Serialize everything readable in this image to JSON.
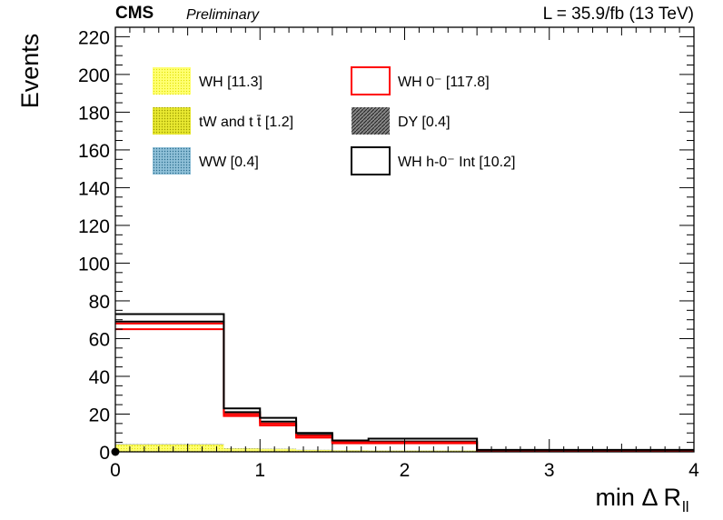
{
  "header": {
    "experiment": "CMS",
    "status": "Preliminary",
    "luminosity": "L = 35.9/fb (13 TeV)"
  },
  "chart_data": {
    "type": "histogram",
    "xlabel": "min Δ R",
    "xlabel_sub": "ll",
    "ylabel": "Events",
    "xlim": [
      0,
      4
    ],
    "ylim": [
      0,
      225
    ],
    "x_ticks": [
      "0",
      "1",
      "2",
      "3",
      "4"
    ],
    "y_ticks": [
      "0",
      "20",
      "40",
      "60",
      "80",
      "100",
      "120",
      "140",
      "160",
      "180",
      "200",
      "220"
    ],
    "bin_edges": [
      0,
      0.75,
      1.0,
      1.25,
      1.5,
      1.75,
      2.5,
      4.0
    ],
    "stacked_background": [
      {
        "name": "WH [11.3]",
        "color": "#ffff66",
        "values": [
          3.5,
          1.6,
          1.4,
          0.9,
          0.7,
          0.6,
          0.3
        ]
      },
      {
        "name": "tW and t t̄ [1.2]",
        "color": "#d4d400",
        "values": [
          0.4,
          0.2,
          0.15,
          0.1,
          0.1,
          0.1,
          0.05
        ]
      },
      {
        "name": "WW [0.4]",
        "color": "#6fa8c8",
        "values": [
          0.1,
          0.05,
          0.05,
          0.04,
          0.03,
          0.02,
          0.01
        ]
      },
      {
        "name": "DY [0.4]",
        "color": "#555555",
        "values": [
          0.1,
          0.05,
          0.05,
          0.04,
          0.03,
          0.02,
          0.01
        ]
      }
    ],
    "signal_lines": [
      {
        "name": "WH 0⁻ [117.8]",
        "color": "#ff0000",
        "values": [
          65,
          19,
          14,
          7.5,
          4.5,
          4.5,
          0.5
        ]
      },
      {
        "name": "WH h-0⁻ Int [10.2]",
        "color": "#000000",
        "values": [
          73,
          23,
          18,
          10,
          6,
          7,
          1.0
        ]
      }
    ],
    "extra_lines": [
      {
        "color": "#000000",
        "values": [
          69,
          21,
          16,
          9,
          5,
          5.5,
          0.8
        ]
      },
      {
        "color": "#ff0000",
        "values": [
          68,
          20,
          15,
          8.5,
          5,
          5,
          0.6
        ]
      }
    ],
    "data_points": [
      {
        "x": 0,
        "y": 0
      }
    ],
    "legend": {
      "placement": "top-left",
      "entries": [
        {
          "label": "WH [11.3]",
          "style": "fill",
          "color": "#ffff66"
        },
        {
          "label": "WH 0⁻ [117.8]",
          "style": "line",
          "color": "#ff0000"
        },
        {
          "label": "tW and t t̄ [1.2]",
          "style": "fill",
          "color": "#d4d400"
        },
        {
          "label": "DY [0.4]",
          "style": "hatch",
          "color": "#555555"
        },
        {
          "label": "WW [0.4]",
          "style": "fill",
          "color": "#6fa8c8"
        },
        {
          "label": "WH h-0⁻ Int [10.2]",
          "style": "line",
          "color": "#000000"
        }
      ]
    }
  }
}
